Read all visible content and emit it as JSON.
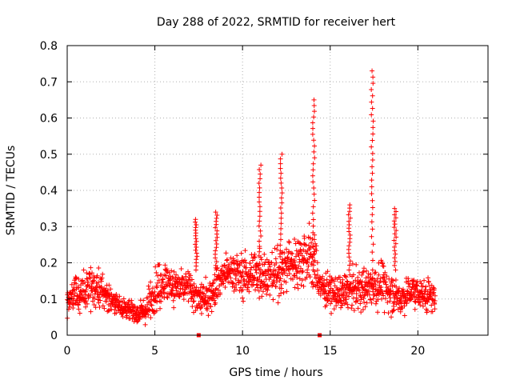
{
  "chart_data": {
    "type": "scatter",
    "title": "Day 288 of 2022, SRMTID for receiver hert",
    "xlabel": "GPS time / hours",
    "ylabel": "SRMTID / TECUs",
    "xlim": [
      0,
      24
    ],
    "ylim": [
      0,
      0.8
    ],
    "x_ticks": [
      0,
      5,
      10,
      15,
      20
    ],
    "x_tick_labels": [
      "0",
      "5",
      "10",
      "15",
      "20"
    ],
    "y_ticks": [
      0,
      0.1,
      0.2,
      0.3,
      0.4,
      0.5,
      0.6,
      0.7,
      0.8
    ],
    "y_tick_labels": [
      "0",
      "0.1",
      "0.2",
      "0.3",
      "0.4",
      "0.5",
      "0.6",
      "0.7",
      "0.8"
    ],
    "grid": true,
    "marker": "plus",
    "series_color": "#ff0000",
    "profile": {
      "x": [
        0.0,
        0.5,
        1.0,
        1.5,
        2.0,
        2.5,
        3.0,
        3.5,
        4.0,
        4.5,
        5.0,
        5.5,
        6.0,
        6.5,
        7.0,
        7.5,
        8.0,
        8.5,
        9.0,
        9.5,
        10.0,
        10.5,
        11.0,
        11.5,
        12.0,
        12.5,
        13.0,
        13.5,
        14.0,
        14.5,
        15.0,
        15.5,
        16.0,
        16.5,
        17.0,
        17.5,
        18.0,
        18.5,
        19.0,
        19.5,
        20.0,
        20.5,
        21.0
      ],
      "median": [
        0.09,
        0.11,
        0.12,
        0.13,
        0.12,
        0.1,
        0.08,
        0.07,
        0.06,
        0.07,
        0.12,
        0.15,
        0.14,
        0.13,
        0.13,
        0.1,
        0.1,
        0.14,
        0.17,
        0.18,
        0.16,
        0.17,
        0.18,
        0.16,
        0.17,
        0.19,
        0.2,
        0.22,
        0.21,
        0.13,
        0.12,
        0.11,
        0.12,
        0.13,
        0.13,
        0.14,
        0.14,
        0.12,
        0.1,
        0.12,
        0.12,
        0.11,
        0.1
      ],
      "spread": [
        0.04,
        0.05,
        0.06,
        0.06,
        0.05,
        0.04,
        0.03,
        0.03,
        0.03,
        0.04,
        0.06,
        0.07,
        0.06,
        0.06,
        0.06,
        0.05,
        0.05,
        0.06,
        0.06,
        0.06,
        0.06,
        0.07,
        0.08,
        0.07,
        0.07,
        0.08,
        0.08,
        0.09,
        0.1,
        0.05,
        0.05,
        0.05,
        0.06,
        0.06,
        0.06,
        0.06,
        0.07,
        0.06,
        0.05,
        0.05,
        0.05,
        0.05,
        0.04
      ]
    },
    "n_points": 1700,
    "peaks": [
      {
        "x": 11.0,
        "y": 0.47
      },
      {
        "x": 12.2,
        "y": 0.5
      },
      {
        "x": 14.05,
        "y": 0.65
      },
      {
        "x": 17.4,
        "y": 0.73
      },
      {
        "x": 18.7,
        "y": 0.35
      },
      {
        "x": 8.5,
        "y": 0.34
      },
      {
        "x": 16.1,
        "y": 0.36
      },
      {
        "x": 7.35,
        "y": 0.32
      }
    ],
    "baseline_markers": [
      7.5,
      14.4
    ]
  }
}
